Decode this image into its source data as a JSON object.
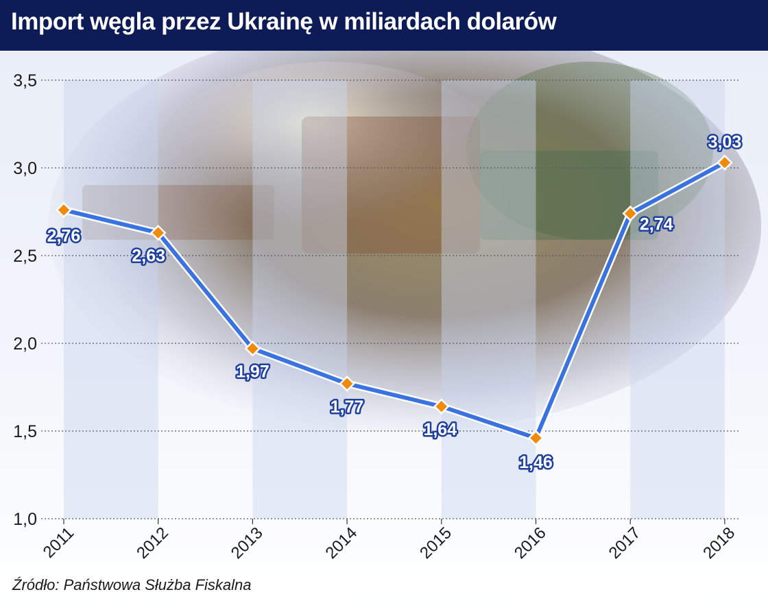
{
  "title": "Import węgla przez Ukrainę w miliardach dolarów",
  "source": "Źródło: Państwowa Służba Fiskalna",
  "colors": {
    "title_bar": "#0d1c57",
    "line": "#3a73e0",
    "marker": "#f08a0c",
    "label_text": "#ffffff",
    "label_outline": "#1f3f9e"
  },
  "chart_data": {
    "type": "line",
    "categories": [
      "2011",
      "2012",
      "2013",
      "2014",
      "2015",
      "2016",
      "2017",
      "2018"
    ],
    "values": [
      2.76,
      2.63,
      1.97,
      1.77,
      1.64,
      1.46,
      2.74,
      3.03
    ],
    "value_labels": [
      "2,76",
      "2,63",
      "1,97",
      "1,77",
      "1,64",
      "1,46",
      "2,74",
      "3,03"
    ],
    "ylim": [
      1.0,
      3.5
    ],
    "yticks": [
      1.0,
      1.5,
      2.0,
      2.5,
      3.0,
      3.5
    ],
    "ytick_labels": [
      "1,0",
      "1,5",
      "2,0",
      "2,5",
      "3,0",
      "3,5"
    ],
    "grid": "horizontal dotted",
    "legend": "none",
    "background": "photo of freight train wagons"
  }
}
